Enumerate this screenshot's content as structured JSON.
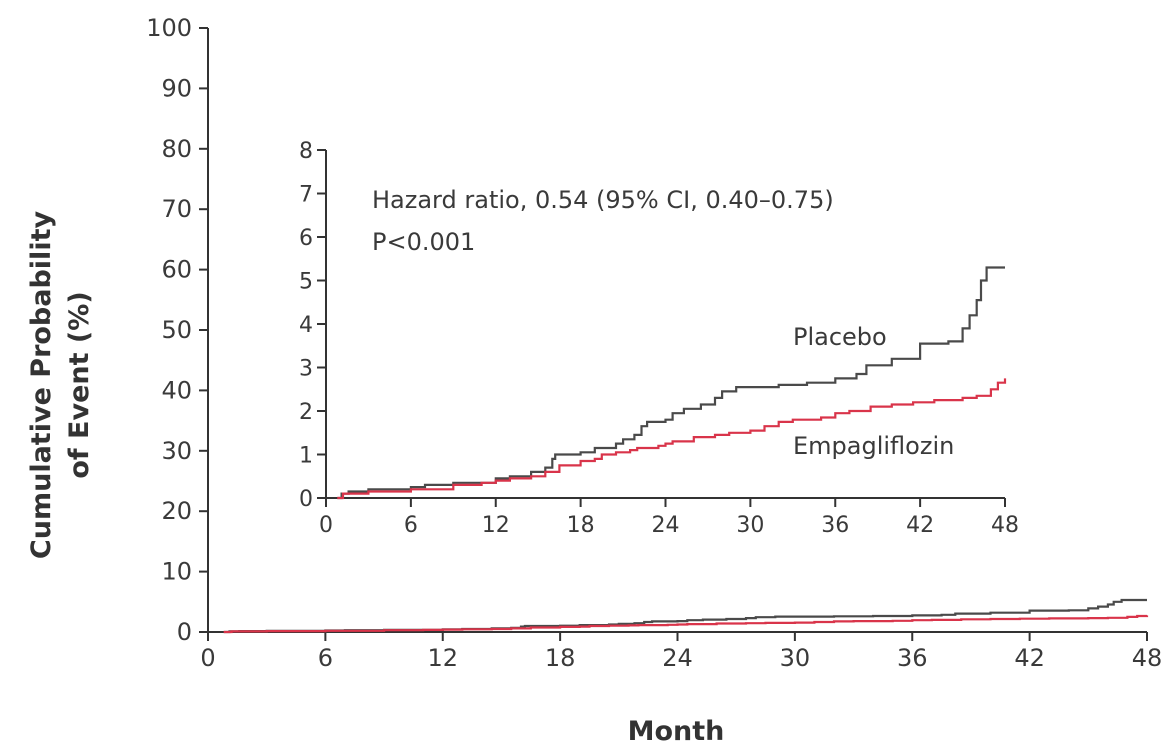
{
  "chart_data": {
    "type": "line",
    "step": true,
    "xlabel": "Month",
    "ylabel_lines": [
      "Cumulative Probability",
      "of Event (%)"
    ],
    "xlim": [
      0,
      48
    ],
    "ylim": [
      0,
      100
    ],
    "xticks": [
      0,
      6,
      12,
      18,
      24,
      30,
      36,
      42,
      48
    ],
    "yticks": [
      0,
      10,
      20,
      30,
      40,
      50,
      60,
      70,
      80,
      90,
      100
    ],
    "series": [
      {
        "name": "Placebo",
        "color": "#4a4a4a",
        "points": [
          [
            0.8,
            0
          ],
          [
            1.1,
            0.1
          ],
          [
            1.6,
            0.15
          ],
          [
            3,
            0.2
          ],
          [
            6,
            0.25
          ],
          [
            7,
            0.3
          ],
          [
            9,
            0.35
          ],
          [
            12,
            0.45
          ],
          [
            13,
            0.5
          ],
          [
            14.5,
            0.6
          ],
          [
            15.5,
            0.7
          ],
          [
            16,
            0.9
          ],
          [
            16.2,
            1.0
          ],
          [
            18,
            1.05
          ],
          [
            19,
            1.15
          ],
          [
            20.5,
            1.25
          ],
          [
            21,
            1.35
          ],
          [
            21.8,
            1.45
          ],
          [
            22.3,
            1.65
          ],
          [
            22.7,
            1.75
          ],
          [
            24,
            1.8
          ],
          [
            24.5,
            1.95
          ],
          [
            25.3,
            2.05
          ],
          [
            26.5,
            2.15
          ],
          [
            27.5,
            2.3
          ],
          [
            28,
            2.45
          ],
          [
            29,
            2.55
          ],
          [
            32,
            2.6
          ],
          [
            34,
            2.65
          ],
          [
            36,
            2.75
          ],
          [
            37.5,
            2.85
          ],
          [
            38.2,
            3.05
          ],
          [
            40,
            3.2
          ],
          [
            42,
            3.55
          ],
          [
            44,
            3.6
          ],
          [
            45,
            3.9
          ],
          [
            45.5,
            4.2
          ],
          [
            46,
            4.55
          ],
          [
            46.3,
            5.0
          ],
          [
            46.7,
            5.3
          ],
          [
            48,
            5.3
          ]
        ]
      },
      {
        "name": "Empagliflozin",
        "color": "#d9344a",
        "points": [
          [
            0.8,
            0
          ],
          [
            1.2,
            0.1
          ],
          [
            3,
            0.15
          ],
          [
            6,
            0.2
          ],
          [
            9,
            0.3
          ],
          [
            11,
            0.35
          ],
          [
            12,
            0.4
          ],
          [
            13,
            0.45
          ],
          [
            14.5,
            0.5
          ],
          [
            15.5,
            0.6
          ],
          [
            16.5,
            0.75
          ],
          [
            18,
            0.85
          ],
          [
            19,
            0.9
          ],
          [
            19.5,
            1.0
          ],
          [
            20.5,
            1.05
          ],
          [
            21.5,
            1.1
          ],
          [
            22,
            1.15
          ],
          [
            23.5,
            1.2
          ],
          [
            24,
            1.25
          ],
          [
            24.5,
            1.3
          ],
          [
            26,
            1.4
          ],
          [
            27.5,
            1.45
          ],
          [
            28.5,
            1.5
          ],
          [
            30,
            1.55
          ],
          [
            31,
            1.65
          ],
          [
            32,
            1.75
          ],
          [
            33,
            1.8
          ],
          [
            35,
            1.85
          ],
          [
            36,
            1.95
          ],
          [
            37,
            2.0
          ],
          [
            38.5,
            2.1
          ],
          [
            40,
            2.15
          ],
          [
            41.5,
            2.2
          ],
          [
            43,
            2.25
          ],
          [
            45,
            2.3
          ],
          [
            46,
            2.35
          ],
          [
            47,
            2.5
          ],
          [
            47.5,
            2.65
          ],
          [
            48,
            2.75
          ]
        ]
      }
    ],
    "inset": {
      "xlim": [
        0,
        48
      ],
      "ylim": [
        0,
        8
      ],
      "xticks": [
        0,
        6,
        12,
        18,
        24,
        30,
        36,
        42,
        48
      ],
      "yticks": [
        0,
        1,
        2,
        3,
        4,
        5,
        6,
        7,
        8
      ],
      "annotations": {
        "hazard_ratio": "Hazard ratio, 0.54 (95% CI, 0.40–0.75)",
        "p_value": "P<0.001"
      },
      "series_labels": {
        "placebo": "Placebo",
        "empagliflozin": "Empagliflozin"
      }
    }
  }
}
